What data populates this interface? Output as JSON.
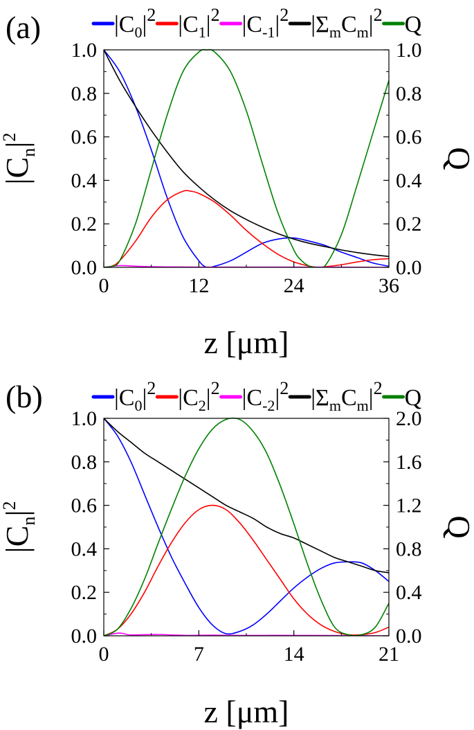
{
  "chart_data": [
    {
      "type": "line",
      "panel_label": "(a)",
      "xlabel": "z [μm]",
      "ylabel": "|Cn|2",
      "ylabel_parts": {
        "base": "|C",
        "sub": "n",
        "close": "|",
        "sup": "2"
      },
      "y2label": "Q",
      "xlim": [
        0,
        36
      ],
      "ylim": [
        0,
        1.0
      ],
      "y2lim": [
        0,
        1.0
      ],
      "xticks": [
        "0",
        "12",
        "24",
        "36"
      ],
      "yticks": [
        "0.0",
        "0.2",
        "0.4",
        "0.6",
        "0.8",
        "1.0"
      ],
      "y2ticks": [
        "0.0",
        "0.2",
        "0.4",
        "0.6",
        "0.8",
        "1.0"
      ],
      "legend": [
        {
          "parts": {
            "base": "|C",
            "sub": "0",
            "close": "|",
            "sup": "2"
          },
          "color": "#0000ff"
        },
        {
          "parts": {
            "base": "|C",
            "sub": "1",
            "close": "|",
            "sup": "2"
          },
          "color": "#ff0000"
        },
        {
          "parts": {
            "base": "|C",
            "sub": "-1",
            "close": "|",
            "sup": "2"
          },
          "color": "#ff00ff"
        },
        {
          "parts": {
            "base": "|Σ",
            "sub": "m",
            "close": "C",
            "sub2": "m",
            "close2": "|",
            "sup": "2"
          },
          "color": "#000000"
        },
        {
          "parts": {
            "base": "Q"
          },
          "color": "#008000"
        }
      ],
      "series": [
        {
          "color": "#0000ff",
          "axis": "left",
          "x": [
            0,
            2,
            4,
            6,
            8,
            10,
            12,
            13,
            14,
            16,
            18,
            20,
            22,
            24,
            26,
            28,
            30,
            32,
            34,
            36
          ],
          "y": [
            1.0,
            0.9,
            0.74,
            0.54,
            0.32,
            0.14,
            0.03,
            0.0,
            0.005,
            0.03,
            0.07,
            0.11,
            0.13,
            0.135,
            0.12,
            0.1,
            0.07,
            0.045,
            0.02,
            0.005
          ]
        },
        {
          "color": "#ff0000",
          "axis": "left",
          "x": [
            0,
            1,
            2,
            4,
            6,
            8,
            10,
            11,
            12,
            14,
            16,
            18,
            20,
            22,
            24,
            26,
            27,
            28,
            30,
            32,
            34,
            36
          ],
          "y": [
            0.0,
            0.005,
            0.03,
            0.12,
            0.23,
            0.31,
            0.35,
            0.35,
            0.34,
            0.3,
            0.24,
            0.17,
            0.11,
            0.06,
            0.025,
            0.005,
            0.0,
            0.003,
            0.012,
            0.025,
            0.035,
            0.04
          ]
        },
        {
          "color": "#ff00ff",
          "axis": "left",
          "x": [
            0,
            2,
            4,
            6,
            8,
            12,
            18,
            24,
            30,
            36
          ],
          "y": [
            0.0,
            0.008,
            0.005,
            0.003,
            0.002,
            0.001,
            0.001,
            0.001,
            0.001,
            0.0
          ]
        },
        {
          "color": "#000000",
          "axis": "left",
          "x": [
            0,
            2,
            4,
            6,
            8,
            10,
            12,
            14,
            16,
            18,
            20,
            22,
            24,
            26,
            28,
            30,
            32,
            34,
            36
          ],
          "y": [
            1.0,
            0.86,
            0.74,
            0.63,
            0.53,
            0.44,
            0.37,
            0.31,
            0.26,
            0.22,
            0.185,
            0.155,
            0.13,
            0.11,
            0.095,
            0.08,
            0.068,
            0.058,
            0.05
          ]
        },
        {
          "color": "#008000",
          "axis": "right",
          "x": [
            0,
            1,
            2,
            4,
            6,
            8,
            10,
            12,
            13,
            14,
            16,
            18,
            20,
            22,
            24,
            25,
            26,
            27,
            28,
            30,
            32,
            34,
            36
          ],
          "y": [
            0.0,
            0.005,
            0.03,
            0.2,
            0.45,
            0.7,
            0.9,
            0.99,
            1.0,
            0.99,
            0.9,
            0.72,
            0.48,
            0.25,
            0.08,
            0.03,
            0.005,
            0.0,
            0.01,
            0.15,
            0.38,
            0.62,
            0.86
          ]
        }
      ]
    },
    {
      "type": "line",
      "panel_label": "(b)",
      "xlabel": "z [μm]",
      "ylabel": "|Cn|2",
      "ylabel_parts": {
        "base": "|C",
        "sub": "n",
        "close": "|",
        "sup": "2"
      },
      "y2label": "Q",
      "xlim": [
        0,
        21
      ],
      "ylim": [
        0,
        1.0
      ],
      "y2lim": [
        0,
        2.0
      ],
      "xticks": [
        "0",
        "7",
        "14",
        "21"
      ],
      "yticks": [
        "0.0",
        "0.2",
        "0.4",
        "0.6",
        "0.8",
        "1.0"
      ],
      "y2ticks": [
        "0.0",
        "0.4",
        "0.8",
        "1.2",
        "1.6",
        "2.0"
      ],
      "legend": [
        {
          "parts": {
            "base": "|C",
            "sub": "0",
            "close": "|",
            "sup": "2"
          },
          "color": "#0000ff"
        },
        {
          "parts": {
            "base": "|C",
            "sub": "2",
            "close": "|",
            "sup": "2"
          },
          "color": "#ff0000"
        },
        {
          "parts": {
            "base": "|C",
            "sub": "-2",
            "close": "|",
            "sup": "2"
          },
          "color": "#ff00ff"
        },
        {
          "parts": {
            "base": "|Σ",
            "sub": "m",
            "close": "C",
            "sub2": "m",
            "close2": "|",
            "sup": "2"
          },
          "color": "#000000"
        },
        {
          "parts": {
            "base": "Q"
          },
          "color": "#008000"
        }
      ],
      "series": [
        {
          "color": "#0000ff",
          "axis": "left",
          "x": [
            0,
            1,
            2,
            3,
            4,
            5,
            6,
            7,
            8,
            9,
            10,
            11,
            12,
            13,
            14,
            15,
            16,
            17,
            18,
            19,
            20,
            21
          ],
          "y": [
            1.0,
            0.92,
            0.8,
            0.65,
            0.5,
            0.36,
            0.24,
            0.13,
            0.05,
            0.01,
            0.02,
            0.05,
            0.1,
            0.16,
            0.22,
            0.27,
            0.31,
            0.335,
            0.34,
            0.335,
            0.3,
            0.25
          ]
        },
        {
          "color": "#ff0000",
          "axis": "left",
          "x": [
            0,
            1,
            2,
            3,
            4,
            5,
            6,
            7,
            8,
            9,
            10,
            11,
            12,
            13,
            14,
            15,
            16,
            17,
            18,
            19,
            20,
            21
          ],
          "y": [
            0.0,
            0.03,
            0.1,
            0.2,
            0.32,
            0.43,
            0.52,
            0.58,
            0.6,
            0.58,
            0.52,
            0.44,
            0.35,
            0.26,
            0.17,
            0.1,
            0.05,
            0.02,
            0.005,
            0.005,
            0.015,
            0.04
          ]
        },
        {
          "color": "#ff00ff",
          "axis": "left",
          "x": [
            0,
            1,
            1.5,
            2,
            4,
            6,
            8,
            10,
            14,
            18,
            21
          ],
          "y": [
            0.0,
            0.012,
            0.01,
            0.004,
            0.006,
            0.002,
            0.003,
            0.002,
            0.002,
            0.001,
            0.0
          ]
        },
        {
          "color": "#000000",
          "axis": "left",
          "x": [
            0,
            1,
            2,
            3,
            4,
            5,
            6,
            7,
            8,
            9,
            10,
            11,
            12,
            13,
            14,
            15,
            16,
            17,
            18,
            19,
            20,
            21
          ],
          "y": [
            1.0,
            0.94,
            0.89,
            0.84,
            0.8,
            0.76,
            0.72,
            0.68,
            0.64,
            0.6,
            0.57,
            0.54,
            0.5,
            0.47,
            0.45,
            0.42,
            0.39,
            0.36,
            0.34,
            0.32,
            0.3,
            0.29
          ]
        },
        {
          "color": "#008000",
          "axis": "right",
          "x": [
            0,
            1,
            2,
            3,
            4,
            5,
            6,
            7,
            8,
            9,
            10,
            11,
            12,
            13,
            14,
            15,
            16,
            17,
            18,
            19,
            20,
            21
          ],
          "y": [
            0.0,
            0.06,
            0.25,
            0.52,
            0.85,
            1.17,
            1.47,
            1.72,
            1.9,
            1.99,
            1.99,
            1.88,
            1.68,
            1.38,
            1.03,
            0.66,
            0.33,
            0.08,
            0.01,
            0.01,
            0.08,
            0.3
          ]
        }
      ]
    }
  ]
}
